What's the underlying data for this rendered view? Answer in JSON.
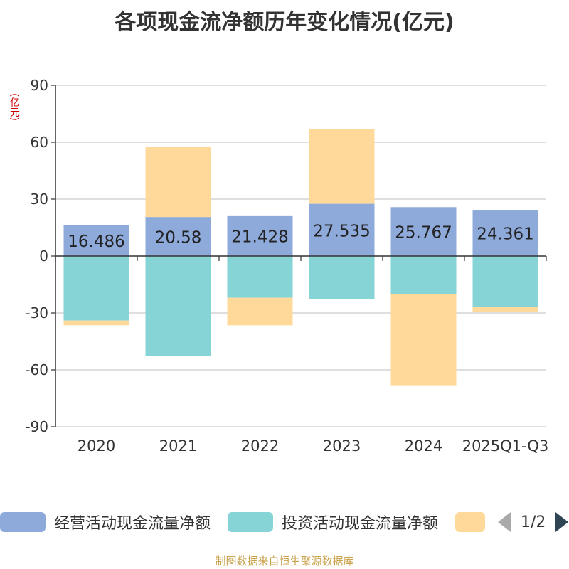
{
  "title": "各项现金流净额历年变化情况(亿元)",
  "unit": "(亿元)",
  "footer": "制图数据来自恒生聚源数据库",
  "legend": {
    "items": [
      {
        "label": "经营活动现金流量净额",
        "color": "#8eaadb"
      },
      {
        "label": "投资活动现金流量净额",
        "color": "#86d4d6"
      },
      {
        "label": "",
        "color": "#ffd99a"
      }
    ],
    "pager": "1/2"
  },
  "chart_data": {
    "type": "bar",
    "stacked": true,
    "categories": [
      "2020",
      "2021",
      "2022",
      "2023",
      "2024",
      "2025Q1-Q3"
    ],
    "ylim": [
      -90,
      90
    ],
    "yticks": [
      90,
      60,
      30,
      0,
      -30,
      -60,
      -90
    ],
    "grid": true,
    "legend_position": "bottom",
    "series": [
      {
        "name": "经营活动现金流量净额",
        "color": "#8eaadb",
        "labels": true,
        "values": [
          16.486,
          20.58,
          21.428,
          27.535,
          25.767,
          24.361
        ]
      },
      {
        "name": "投资活动现金流量净额",
        "color": "#86d4d6",
        "labels": false,
        "values": [
          -34,
          -52.5,
          -22,
          -22.5,
          -20,
          -27
        ]
      },
      {
        "name": "",
        "color": "#ffd99a",
        "labels": false,
        "values": [
          -2.5,
          37,
          -14.5,
          39.5,
          -48.5,
          -2.5
        ]
      }
    ]
  }
}
